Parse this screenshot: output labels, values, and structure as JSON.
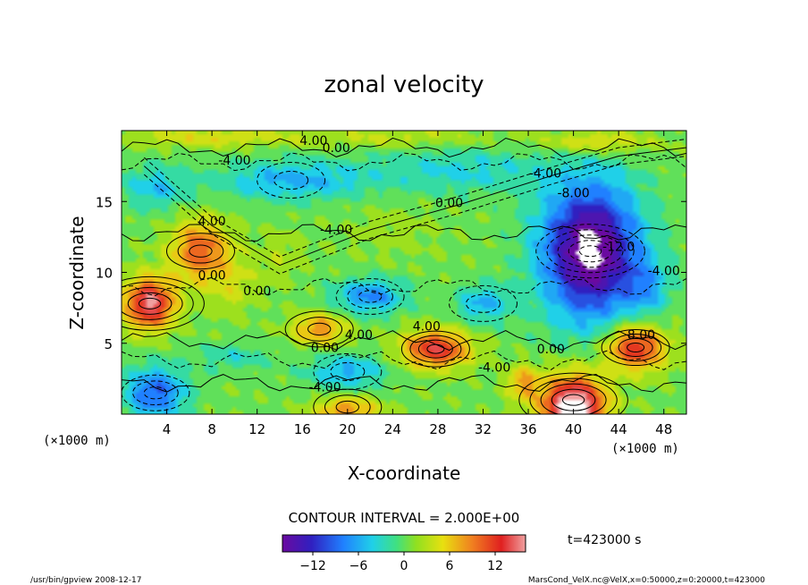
{
  "chart_data": {
    "type": "heatmap",
    "title": "zonal velocity",
    "xlabel": "X-coordinate",
    "ylabel": "Z-coordinate",
    "x_unit": "(×1000 m)",
    "x_unit_right": "(×1000 m)",
    "xlim": [
      0,
      50
    ],
    "ylim": [
      0,
      20
    ],
    "xticks": [
      4,
      8,
      12,
      16,
      20,
      24,
      28,
      32,
      36,
      40,
      44,
      48
    ],
    "yticks": [
      5,
      10,
      15
    ],
    "contour_interval_text": "CONTOUR INTERVAL = 2.000E+00",
    "contour_labels": [
      "4.00",
      "0.00",
      "-4.00",
      "4.00",
      "0.00",
      "-4.00",
      "0.00",
      "-8.00",
      "-12.0",
      "-4.00",
      "0.00",
      "4.00",
      "0.00",
      "4.00",
      "-4.00",
      "-4.00",
      "8.00",
      "0.00",
      "-4.00"
    ],
    "colorbar": {
      "min": -16,
      "max": 16,
      "ticks": [
        -12,
        -6,
        0,
        6,
        12
      ]
    },
    "time_text": "t=423000 s",
    "footer_left": "/usr/bin/gpview   2008-12-17",
    "footer_right": "MarsCond_VelX.nc@VelX,x=0:50000,z=0:20000,t=423000",
    "field_features": [
      {
        "kind": "max",
        "x": 2.5,
        "z": 7.8,
        "value": 14
      },
      {
        "kind": "max",
        "x": 7.0,
        "z": 11.5,
        "value": 10
      },
      {
        "kind": "min",
        "x": 41.5,
        "z": 11.5,
        "value": -16
      },
      {
        "kind": "max",
        "x": 27.8,
        "z": 4.6,
        "value": 12
      },
      {
        "kind": "max",
        "x": 45.5,
        "z": 4.7,
        "value": 12
      },
      {
        "kind": "max",
        "x": 17.5,
        "z": 6.0,
        "value": 8
      },
      {
        "kind": "max",
        "x": 40.0,
        "z": 1.0,
        "value": 16
      },
      {
        "kind": "max",
        "x": 20.0,
        "z": 0.5,
        "value": 8
      },
      {
        "kind": "min",
        "x": 3.0,
        "z": 1.5,
        "value": -10
      },
      {
        "kind": "min",
        "x": 20.0,
        "z": 3.0,
        "value": -6
      },
      {
        "kind": "min",
        "x": 22.0,
        "z": 8.3,
        "value": -8
      },
      {
        "kind": "min",
        "x": 32.0,
        "z": 7.8,
        "value": -6
      },
      {
        "kind": "min",
        "x": 15.0,
        "z": 16.5,
        "value": -6
      }
    ]
  }
}
